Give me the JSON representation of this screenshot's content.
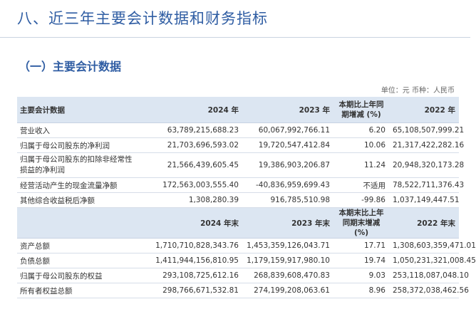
{
  "header": {
    "title": "八、近三年主要会计数据和财务指标"
  },
  "section": {
    "title": "（一）主要会计数据",
    "unit_note": "单位：元  币种：人民币"
  },
  "table1": {
    "headers": [
      "主要会计数据",
      "2024 年",
      "2023 年",
      "本期比上年同期增减 (%)",
      "2022 年"
    ],
    "rows": [
      [
        "营业收入",
        "63,789,215,688.23",
        "60,067,992,766.11",
        "6.20",
        "65,108,507,999.21"
      ],
      [
        "归属于母公司股东的净利润",
        "21,703,696,593.02",
        "19,720,547,412.84",
        "10.06",
        "21,317,422,282.16"
      ],
      [
        "归属于母公司股东的扣除非经常性损益的净利润",
        "21,566,439,605.45",
        "19,386,903,206.87",
        "11.24",
        "20,948,320,173.28"
      ],
      [
        "经营活动产生的现金流量净额",
        "172,563,003,555.40",
        "-40,836,959,699.43",
        "不适用",
        "78,522,711,376.43"
      ],
      [
        "其他综合收益税后净额",
        "1,308,280.39",
        "916,785,510.98",
        "-99.86",
        "1,037,149,447.51"
      ]
    ]
  },
  "table2": {
    "headers": [
      "",
      "2024 年末",
      "2023 年末",
      "本期末比上年同期末增减 (%)",
      "2022 年末"
    ],
    "rows": [
      [
        "资产总额",
        "1,710,710,828,343.76",
        "1,453,359,126,043.71",
        "17.71",
        "1,308,603,359,471.01"
      ],
      [
        "负债总额",
        "1,411,944,156,810.95",
        "1,179,159,917,980.10",
        "19.74",
        "1,050,231,321,008.45"
      ],
      [
        "归属于母公司股东的权益",
        "293,108,725,612.16",
        "268,839,608,470.83",
        "9.03",
        "253,118,087,048.10"
      ],
      [
        "所有者权益总额",
        "298,766,671,532.81",
        "274,199,208,063.61",
        "8.96",
        "258,372,038,462.56"
      ]
    ]
  }
}
